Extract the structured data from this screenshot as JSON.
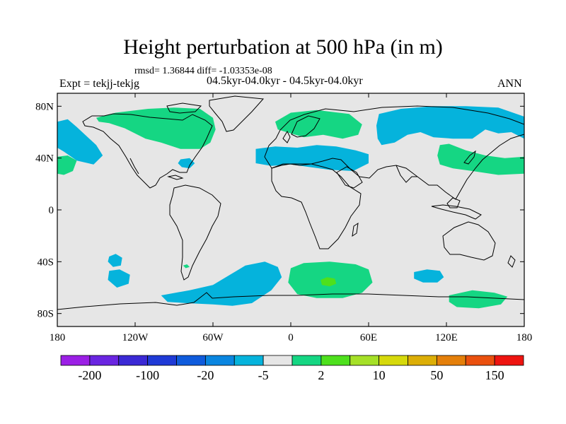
{
  "title": "Height perturbation at 500 hPa (in m)",
  "stats": "rmsd= 1.36844 diff= -1.03353e-08",
  "experiment": "Expt = tekjj-tekjg",
  "periods": "04.5kyr-04.0kyr - 04.5kyr-04.0kyr",
  "season": "ANN",
  "map": {
    "projection": "cylindrical-equidistant",
    "lon_range": [
      -180,
      180
    ],
    "lat_range": [
      -90,
      90
    ],
    "background_color": "#e6e6e6",
    "x_ticks": [
      {
        "lon": -180,
        "label": "180"
      },
      {
        "lon": -120,
        "label": "120W"
      },
      {
        "lon": -60,
        "label": "60W"
      },
      {
        "lon": 0,
        "label": "0"
      },
      {
        "lon": 60,
        "label": "60E"
      },
      {
        "lon": 120,
        "label": "120E"
      },
      {
        "lon": 180,
        "label": "180"
      }
    ],
    "y_ticks": [
      {
        "lat": 80,
        "label": "80N"
      },
      {
        "lat": 40,
        "label": "40N"
      },
      {
        "lat": 0,
        "label": "0"
      },
      {
        "lat": -40,
        "label": "40S"
      },
      {
        "lat": -80,
        "label": "80S"
      }
    ],
    "regions": [
      {
        "name": "north-pacific-east-negative",
        "color": "#05b3dc",
        "points": [
          [
            -180,
            68
          ],
          [
            -172,
            70
          ],
          [
            -165,
            64
          ],
          [
            -150,
            50
          ],
          [
            -145,
            42
          ],
          [
            -152,
            35
          ],
          [
            -165,
            38
          ],
          [
            -175,
            45
          ],
          [
            -180,
            48
          ]
        ]
      },
      {
        "name": "dateline-west-positive",
        "color": "#15d683",
        "points": [
          [
            -180,
            41
          ],
          [
            -172,
            42
          ],
          [
            -165,
            38
          ],
          [
            -168,
            30
          ],
          [
            -175,
            27
          ],
          [
            -180,
            28
          ]
        ]
      },
      {
        "name": "north-america-positive",
        "color": "#15d683",
        "points": [
          [
            -150,
            71
          ],
          [
            -135,
            75
          ],
          [
            -110,
            78
          ],
          [
            -90,
            79
          ],
          [
            -70,
            78
          ],
          [
            -60,
            71
          ],
          [
            -58,
            62
          ],
          [
            -62,
            52
          ],
          [
            -70,
            47
          ],
          [
            -85,
            47
          ],
          [
            -100,
            52
          ],
          [
            -112,
            55
          ],
          [
            -128,
            63
          ],
          [
            -140,
            67
          ],
          [
            -148,
            68
          ]
        ]
      },
      {
        "name": "north-atlantic-positive",
        "color": "#15d683",
        "points": [
          [
            -12,
            68
          ],
          [
            0,
            75
          ],
          [
            20,
            77
          ],
          [
            45,
            74
          ],
          [
            55,
            66
          ],
          [
            52,
            58
          ],
          [
            40,
            55
          ],
          [
            25,
            58
          ],
          [
            10,
            56
          ],
          [
            0,
            59
          ],
          [
            -10,
            62
          ]
        ]
      },
      {
        "name": "southeast-usa-negative",
        "color": "#05b3dc",
        "points": [
          [
            -85,
            39
          ],
          [
            -78,
            40
          ],
          [
            -74,
            36
          ],
          [
            -78,
            32
          ],
          [
            -84,
            33
          ],
          [
            -87,
            36
          ]
        ]
      },
      {
        "name": "mediterranean-negative",
        "color": "#05b3dc",
        "points": [
          [
            -27,
            47
          ],
          [
            -12,
            49
          ],
          [
            5,
            48
          ],
          [
            20,
            50
          ],
          [
            35,
            49
          ],
          [
            50,
            46
          ],
          [
            60,
            43
          ],
          [
            60,
            36
          ],
          [
            48,
            30
          ],
          [
            30,
            31
          ],
          [
            15,
            33
          ],
          [
            0,
            35
          ],
          [
            -15,
            34
          ],
          [
            -27,
            36
          ]
        ]
      },
      {
        "name": "siberia-negative",
        "color": "#05b3dc",
        "points": [
          [
            68,
            74
          ],
          [
            85,
            78
          ],
          [
            110,
            80
          ],
          [
            135,
            80
          ],
          [
            160,
            79
          ],
          [
            180,
            72
          ],
          [
            180,
            55
          ],
          [
            170,
            60
          ],
          [
            160,
            59
          ],
          [
            150,
            62
          ],
          [
            140,
            55
          ],
          [
            125,
            55
          ],
          [
            110,
            56
          ],
          [
            100,
            60
          ],
          [
            90,
            58
          ],
          [
            80,
            52
          ],
          [
            70,
            50
          ],
          [
            67,
            55
          ],
          [
            66,
            65
          ]
        ]
      },
      {
        "name": "japan-pacific-positive",
        "color": "#15d683",
        "points": [
          [
            115,
            50
          ],
          [
            122,
            51
          ],
          [
            135,
            46
          ],
          [
            150,
            42
          ],
          [
            165,
            40
          ],
          [
            180,
            41
          ],
          [
            180,
            28
          ],
          [
            160,
            27
          ],
          [
            140,
            30
          ],
          [
            125,
            32
          ],
          [
            115,
            35
          ],
          [
            113,
            42
          ]
        ]
      },
      {
        "name": "south-pacific-negative-a",
        "color": "#05b3dc",
        "points": [
          [
            -140,
            -36
          ],
          [
            -135,
            -34
          ],
          [
            -130,
            -37
          ],
          [
            -131,
            -43
          ],
          [
            -137,
            -44
          ],
          [
            -141,
            -40
          ]
        ]
      },
      {
        "name": "south-pacific-negative-b",
        "color": "#05b3dc",
        "points": [
          [
            -140,
            -47
          ],
          [
            -132,
            -46
          ],
          [
            -124,
            -50
          ],
          [
            -125,
            -57
          ],
          [
            -134,
            -60
          ],
          [
            -141,
            -54
          ]
        ]
      },
      {
        "name": "south-atlantic-negative",
        "color": "#05b3dc",
        "points": [
          [
            -100,
            -66
          ],
          [
            -78,
            -62
          ],
          [
            -60,
            -58
          ],
          [
            -50,
            -52
          ],
          [
            -35,
            -43
          ],
          [
            -20,
            -40
          ],
          [
            -10,
            -44
          ],
          [
            -7,
            -52
          ],
          [
            -15,
            -62
          ],
          [
            -30,
            -72
          ],
          [
            -45,
            -74
          ],
          [
            -60,
            -73
          ],
          [
            -80,
            -72
          ],
          [
            -95,
            -71
          ]
        ]
      },
      {
        "name": "patagonia-positive-spot",
        "color": "#15d683",
        "points": [
          [
            -83,
            -43
          ],
          [
            -80,
            -42
          ],
          [
            -78,
            -44
          ],
          [
            -81,
            -45
          ]
        ]
      },
      {
        "name": "south-indian-positive",
        "color": "#15d683",
        "points": [
          [
            0,
            -45
          ],
          [
            10,
            -41
          ],
          [
            30,
            -40
          ],
          [
            50,
            -42
          ],
          [
            60,
            -46
          ],
          [
            63,
            -56
          ],
          [
            55,
            -64
          ],
          [
            40,
            -68
          ],
          [
            20,
            -68
          ],
          [
            5,
            -65
          ],
          [
            -2,
            -56
          ]
        ]
      },
      {
        "name": "south-indian-core",
        "color": "#4ee01d",
        "points": [
          [
            23,
            -54
          ],
          [
            28,
            -52
          ],
          [
            34,
            -53
          ],
          [
            35,
            -57
          ],
          [
            30,
            -59
          ],
          [
            24,
            -58
          ]
        ]
      },
      {
        "name": "south-indian-negative",
        "color": "#05b3dc",
        "points": [
          [
            95,
            -48
          ],
          [
            105,
            -46
          ],
          [
            115,
            -47
          ],
          [
            118,
            -52
          ],
          [
            113,
            -56
          ],
          [
            102,
            -56
          ],
          [
            95,
            -53
          ]
        ]
      },
      {
        "name": "antarctic-pacific-positive",
        "color": "#15d683",
        "points": [
          [
            122,
            -66
          ],
          [
            140,
            -62
          ],
          [
            157,
            -64
          ],
          [
            167,
            -67
          ],
          [
            162,
            -73
          ],
          [
            145,
            -76
          ],
          [
            128,
            -75
          ],
          [
            122,
            -71
          ]
        ]
      }
    ]
  },
  "colorbar": {
    "colors": [
      "#9b1fe5",
      "#6a25e1",
      "#3b29d5",
      "#1f3ad6",
      "#0f5bdc",
      "#0a86e0",
      "#05b3dc",
      "#e6e6e6",
      "#15d683",
      "#4ee01d",
      "#a5e027",
      "#d6d90b",
      "#dcae06",
      "#e47f0a",
      "#ea500e",
      "#ee1410"
    ],
    "labels": [
      {
        "boundary": 1,
        "text": "-200"
      },
      {
        "boundary": 3,
        "text": "-100"
      },
      {
        "boundary": 5,
        "text": "-20"
      },
      {
        "boundary": 7,
        "text": "-5"
      },
      {
        "boundary": 9,
        "text": "2"
      },
      {
        "boundary": 11,
        "text": "10"
      },
      {
        "boundary": 13,
        "text": "50"
      },
      {
        "boundary": 15,
        "text": "150"
      }
    ]
  }
}
